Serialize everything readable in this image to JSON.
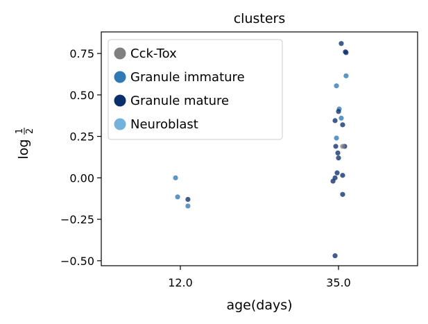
{
  "chart_data": {
    "type": "scatter",
    "title": "clusters",
    "xlabel": "age(days)",
    "ylabel": "log 1/2",
    "x_categories": [
      "12.0",
      "35.0"
    ],
    "ylim": [
      -0.53,
      0.88
    ],
    "y_ticks": [
      -0.5,
      -0.25,
      0.0,
      0.25,
      0.5,
      0.75
    ],
    "y_tick_labels": [
      "−0.50",
      "−0.25",
      "0.00",
      "0.25",
      "0.50",
      "0.75"
    ],
    "grid": false,
    "legend_position": "upper-left",
    "colors": {
      "Cck-Tox": "#808080",
      "Granule immature": "#2f79b5",
      "Granule mature": "#0b2f6b",
      "Neuroblast": "#74b1db"
    },
    "legend": [
      {
        "name": "Cck-Tox",
        "color": "#808080"
      },
      {
        "name": "Granule immature",
        "color": "#2f79b5"
      },
      {
        "name": "Granule mature",
        "color": "#0b2f6b"
      },
      {
        "name": "Neuroblast",
        "color": "#74b1db"
      }
    ],
    "series": [
      {
        "name": "Granule immature",
        "points": [
          {
            "x": 11.3,
            "y": 0.0
          },
          {
            "x": 11.6,
            "y": -0.115
          },
          {
            "x": 13.1,
            "y": -0.17
          },
          {
            "x": 34.7,
            "y": 0.555
          },
          {
            "x": 35.1,
            "y": 0.415
          },
          {
            "x": 35.4,
            "y": 0.36
          },
          {
            "x": 34.7,
            "y": 0.24
          },
          {
            "x": 36.1,
            "y": 0.615
          }
        ]
      },
      {
        "name": "Granule mature",
        "points": [
          {
            "x": 13.1,
            "y": -0.13
          },
          {
            "x": 35.4,
            "y": 0.81
          },
          {
            "x": 36.0,
            "y": 0.76
          },
          {
            "x": 36.1,
            "y": 0.755
          },
          {
            "x": 35.0,
            "y": 0.4
          },
          {
            "x": 34.5,
            "y": 0.345
          },
          {
            "x": 35.6,
            "y": 0.32
          },
          {
            "x": 34.6,
            "y": 0.19
          },
          {
            "x": 35.9,
            "y": 0.19
          },
          {
            "x": 34.9,
            "y": 0.15
          },
          {
            "x": 35.0,
            "y": 0.12
          },
          {
            "x": 34.8,
            "y": 0.03
          },
          {
            "x": 35.6,
            "y": 0.015
          },
          {
            "x": 34.5,
            "y": 0.0
          },
          {
            "x": 34.2,
            "y": -0.02
          },
          {
            "x": 35.6,
            "y": -0.1
          },
          {
            "x": 34.5,
            "y": -0.47
          }
        ]
      },
      {
        "name": "Cck-Tox",
        "points": [
          {
            "x": 35.6,
            "y": 0.19
          }
        ]
      }
    ]
  }
}
